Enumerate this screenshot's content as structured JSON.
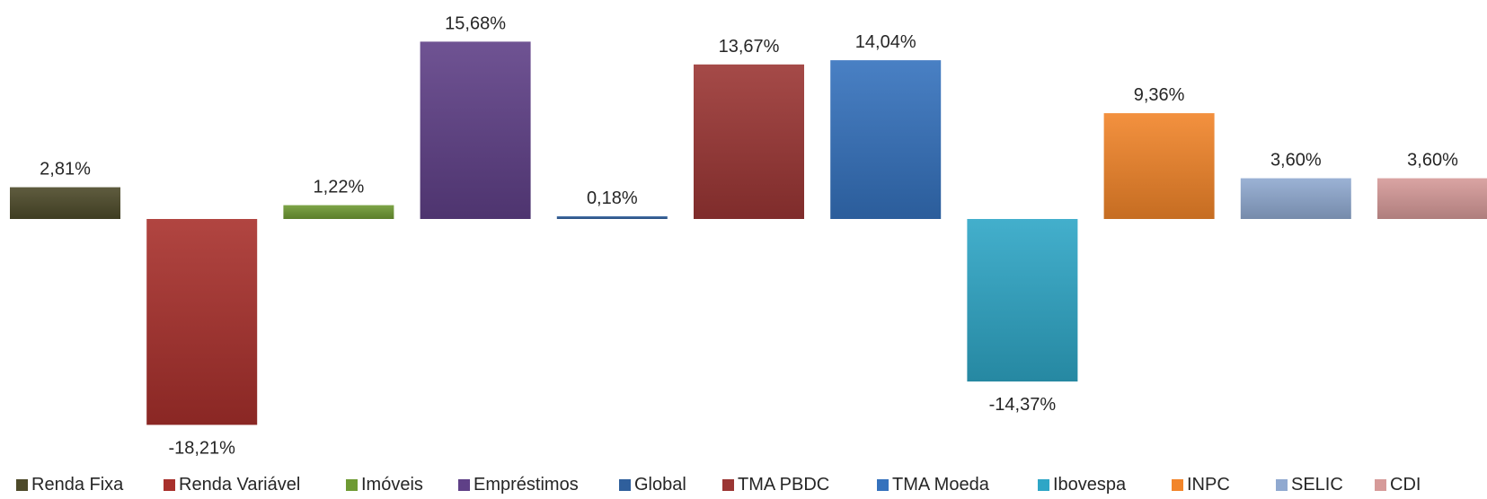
{
  "chart_data": {
    "type": "bar",
    "categories": [
      "Renda Fixa",
      "Renda Variável",
      "Imóveis",
      "Empréstimos",
      "Global",
      "TMA PBDC",
      "TMA Moeda",
      "Ibovespa",
      "INPC",
      "SELIC",
      "CDI"
    ],
    "values": [
      2.81,
      -18.21,
      1.22,
      15.68,
      0.18,
      13.67,
      14.04,
      -14.37,
      9.36,
      3.6,
      3.6
    ],
    "labels": [
      "2,81%",
      "-18,21%",
      "1,22%",
      "15,68%",
      "0,18%",
      "13,67%",
      "14,04%",
      "-14,37%",
      "9,36%",
      "3,60%",
      "3,60%"
    ],
    "colors": [
      "#4d4a2a",
      "#a8302c",
      "#6e9a33",
      "#5f4087",
      "#2f5f9c",
      "#9b3634",
      "#3572bd",
      "#2ea6c6",
      "#f2852a",
      "#90a9d0",
      "#d69a99"
    ],
    "legend_position": "bottom",
    "grid": false,
    "ylim": [
      -20,
      18
    ]
  }
}
